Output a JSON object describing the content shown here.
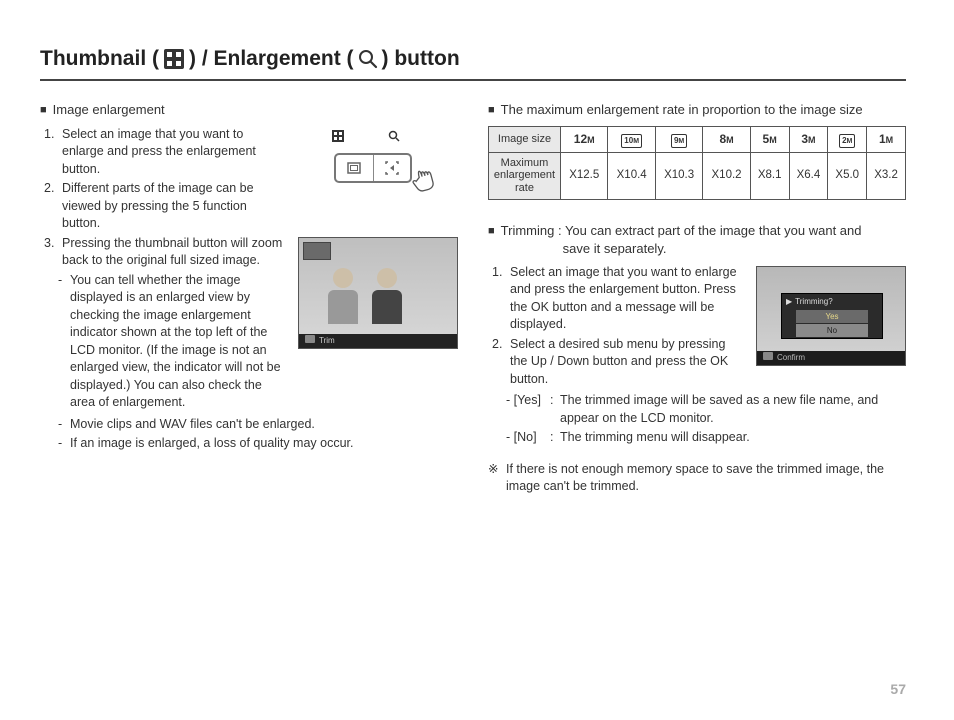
{
  "title_parts": {
    "a": "Thumbnail (",
    "b": ") / Enlargement (",
    "c": ") button"
  },
  "left": {
    "heading": "Image enlargement",
    "steps": [
      "Select an image that you want to enlarge and press the enlargement button.",
      "Different parts of the image can be viewed by pressing the 5 function button.",
      "Pressing the thumbnail button will zoom back to the original full sized image."
    ],
    "sub3": "You can tell whether the image displayed is an enlarged view by checking the image enlargement indicator shown at the top left of the LCD monitor. (If the image is not an enlarged view, the indicator will not be displayed.) You can also check the area of enlargement.",
    "dash1": "Movie clips and WAV files can't be enlarged.",
    "dash2": "If an image is enlarged, a loss of quality may occur.",
    "trimbar_label": "Trim"
  },
  "right": {
    "heading": "The maximum enlargement rate in proportion to the image size",
    "table": {
      "row1_label": "Image size",
      "row2_label": "Maximum enlargement rate",
      "sizes": [
        "12",
        "10",
        "9",
        "8",
        "5",
        "3",
        "2",
        "1"
      ],
      "boxed": [
        false,
        true,
        true,
        false,
        false,
        false,
        true,
        false
      ],
      "rates": [
        "X12.5",
        "X10.4",
        "X10.3",
        "X10.2",
        "X8.1",
        "X6.4",
        "X5.0",
        "X3.2"
      ]
    },
    "trim_heading": "Trimming : You can extract part of the image that you want and save it separately.",
    "trim_heading_l1": "Trimming : You can extract part of the image that you want and",
    "trim_heading_l2": "save it separately.",
    "t_steps": [
      "Select an image that you want to enlarge and press the enlargement button. Press the OK button and a message will be displayed.",
      "Select a desired sub menu by pressing the Up / Down button and press the OK button."
    ],
    "yes_label": "- [Yes]",
    "yes_text": "The trimmed image will be saved as a new file name, and appear on the LCD monitor.",
    "no_label": "- [No]",
    "no_text": "The trimming menu will disappear.",
    "note": "If there is not enough memory space to save the trimmed image, the image can't be trimmed.",
    "dlg_title": "Trimming?",
    "dlg_yes": "Yes",
    "dlg_no": "No",
    "confirm_label": "Confirm"
  },
  "page_number": "57",
  "colors": {
    "rule": "#444444",
    "table_header_bg": "#e9e9e9",
    "border": "#555555"
  }
}
